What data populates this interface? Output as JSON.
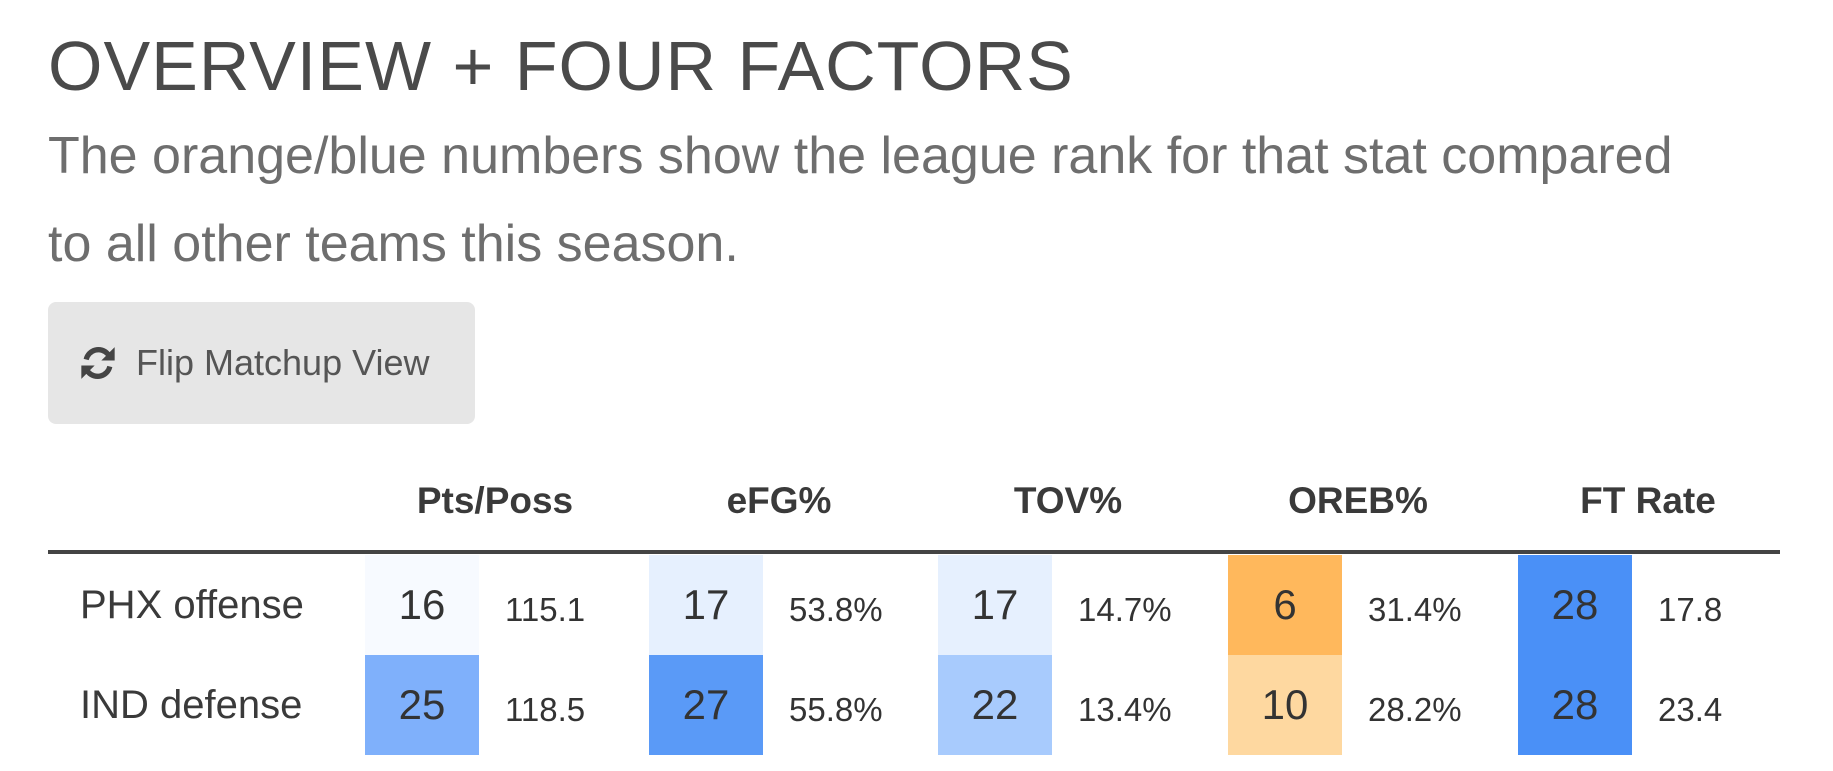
{
  "title": "OVERVIEW + FOUR FACTORS",
  "subtitle": "The orange/blue numbers show the league rank for that stat compared to all other teams this season.",
  "button": {
    "label": "Flip Matchup View",
    "icon": "refresh-icon"
  },
  "columns": [
    "Pts/Poss",
    "eFG%",
    "TOV%",
    "OREB%",
    "FT Rate"
  ],
  "rows": [
    {
      "label": "PHX offense",
      "cells": [
        {
          "rank": "16",
          "value": "115.1",
          "color": "#f7faff"
        },
        {
          "rank": "17",
          "value": "53.8%",
          "color": "#e6f0fe"
        },
        {
          "rank": "17",
          "value": "14.7%",
          "color": "#e6f0fe"
        },
        {
          "rank": "6",
          "value": "31.4%",
          "color": "#ffb85c"
        },
        {
          "rank": "28",
          "value": "17.8",
          "color": "#4a90f7"
        }
      ]
    },
    {
      "label": "IND defense",
      "cells": [
        {
          "rank": "25",
          "value": "118.5",
          "color": "#7fb0fb"
        },
        {
          "rank": "27",
          "value": "55.8%",
          "color": "#5a9af7"
        },
        {
          "rank": "22",
          "value": "13.4%",
          "color": "#a8cbfd"
        },
        {
          "rank": "10",
          "value": "28.2%",
          "color": "#fed8a0"
        },
        {
          "rank": "28",
          "value": "23.4",
          "color": "#4a90f7"
        }
      ]
    }
  ]
}
